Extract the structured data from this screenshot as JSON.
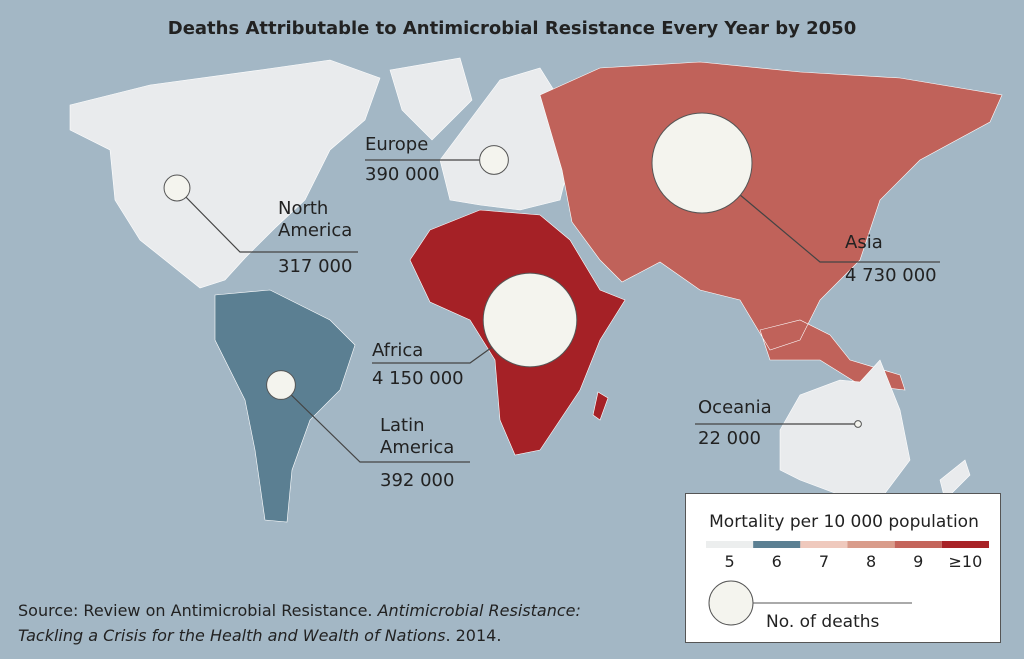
{
  "title": "Deaths Attributable to Antimicrobial Resistance Every Year by 2050",
  "regions": [
    {
      "name": "North America",
      "deaths": 317000,
      "value_label": "317 000",
      "color": "#e9ebed"
    },
    {
      "name": "Europe",
      "deaths": 390000,
      "value_label": "390 000",
      "color": "#e9ebed"
    },
    {
      "name": "Asia",
      "deaths": 4730000,
      "value_label": "4 730 000",
      "color": "#c0625a"
    },
    {
      "name": "Africa",
      "deaths": 4150000,
      "value_label": "4 150 000",
      "color": "#a52126"
    },
    {
      "name": "Latin America",
      "deaths": 392000,
      "value_label": "392 000",
      "color": "#5b7f92"
    },
    {
      "name": "Oceania",
      "deaths": 22000,
      "value_label": "22 000",
      "color": "#e9ebed"
    }
  ],
  "legend": {
    "title": "Mortality per 10 000 population",
    "scale": [
      {
        "label": "5",
        "color": "#eceeee"
      },
      {
        "label": "6",
        "color": "#5b7f92"
      },
      {
        "label": "7",
        "color": "#efc9bd"
      },
      {
        "label": "8",
        "color": "#d99c8b"
      },
      {
        "label": "9",
        "color": "#c4655b"
      },
      {
        "label": "≥10",
        "color": "#a82226"
      }
    ],
    "size_label": "No. of deaths"
  },
  "source": {
    "prefix": "Source: Review on Antimicrobial Resistance. ",
    "title": "Antimicrobial Resistance: Tackling a Crisis for the Health and Wealth of Nations",
    "suffix": ". 2014."
  }
}
